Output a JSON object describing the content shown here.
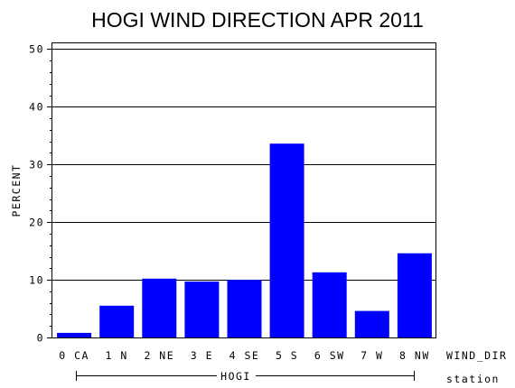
{
  "chart_data": {
    "type": "bar",
    "title": "HOGI WIND DIRECTION APR 2011",
    "ylabel": "PERCENT",
    "xlabel": "WIND_DIR",
    "group_label": "station",
    "group_name": "HOGI",
    "categories": [
      "0 CA",
      "1 N",
      "2 NE",
      "3 E",
      "4 SE",
      "5 S",
      "6 SW",
      "7 W",
      "8 NW"
    ],
    "values": [
      0.8,
      5.5,
      10.2,
      9.7,
      10.0,
      33.6,
      11.3,
      4.6,
      14.6
    ],
    "ylim": [
      0,
      51
    ],
    "yticks": [
      0,
      10,
      20,
      30,
      40,
      50
    ],
    "grid": true,
    "bar_color": "#0000ff"
  }
}
